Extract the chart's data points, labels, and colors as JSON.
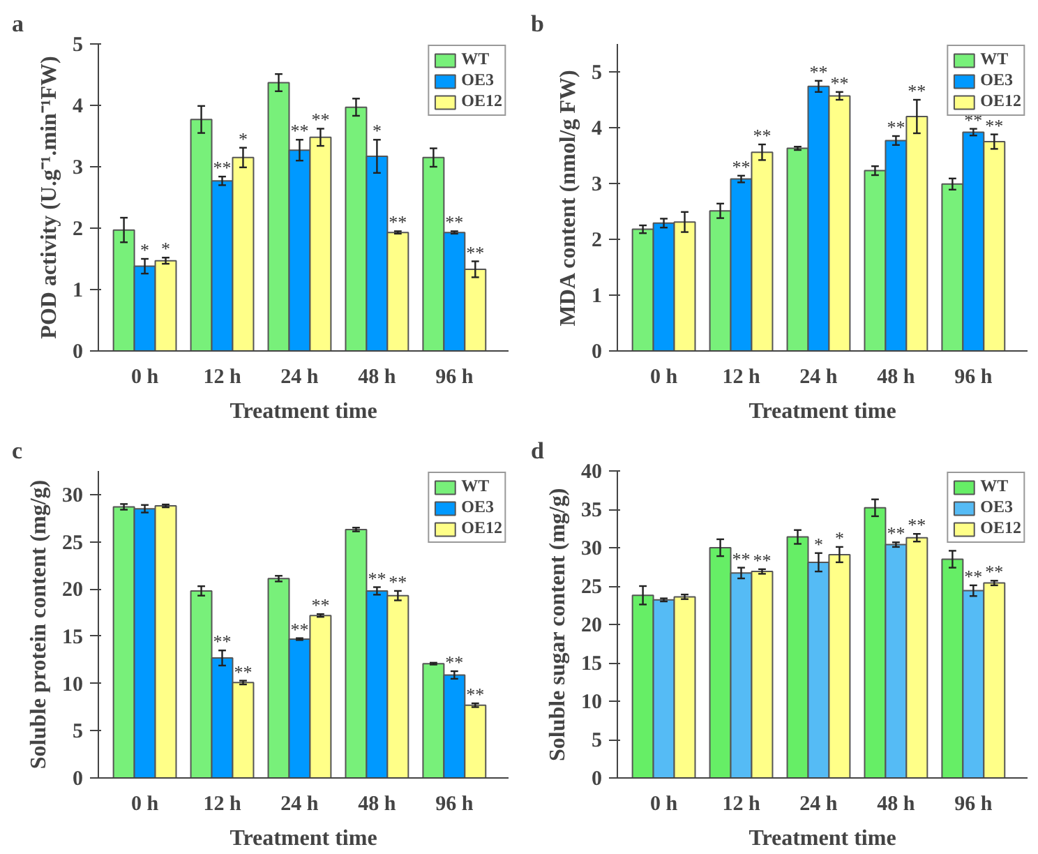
{
  "chart_data": [
    {
      "type": "bar",
      "title": "a",
      "xlabel": "Treatment time",
      "ylabel": "POD activity (U.g⁻¹.min⁻¹FW)",
      "categories": [
        "0 h",
        "12 h",
        "24 h",
        "48 h",
        "96 h"
      ],
      "ylim": [
        0,
        5
      ],
      "yticks": [
        0,
        1,
        2,
        3,
        4,
        5
      ],
      "legend": "top right",
      "grid": false,
      "series": [
        {
          "name": "WT",
          "color": "#78f07a",
          "values": [
            1.97,
            3.77,
            4.37,
            3.97,
            3.15
          ],
          "errors": [
            0.2,
            0.22,
            0.14,
            0.14,
            0.15
          ]
        },
        {
          "name": "OE3",
          "color": "#0099ff",
          "values": [
            1.38,
            2.77,
            3.27,
            3.17,
            1.93
          ],
          "errors": [
            0.12,
            0.07,
            0.17,
            0.27,
            0.02
          ],
          "value_labels": [
            "*",
            "**",
            "**",
            "*",
            "**"
          ]
        },
        {
          "name": "OE12",
          "color": "#ffff88",
          "values": [
            1.47,
            3.15,
            3.48,
            1.93,
            1.33
          ],
          "errors": [
            0.05,
            0.16,
            0.14,
            0.02,
            0.13
          ],
          "value_labels": [
            "*",
            "*",
            "**",
            "**",
            "**"
          ]
        }
      ]
    },
    {
      "type": "bar",
      "title": "b",
      "xlabel": "Treatment time",
      "ylabel": "MDA content (nmol/g FW)",
      "categories": [
        "0 h",
        "12 h",
        "24 h",
        "48 h",
        "96 h"
      ],
      "ylim": [
        0,
        5.5
      ],
      "yticks": [
        0,
        1,
        2,
        3,
        4,
        5
      ],
      "legend": "top right",
      "grid": false,
      "series": [
        {
          "name": "WT",
          "color": "#78f07a",
          "values": [
            2.18,
            2.51,
            3.63,
            3.23,
            2.99
          ],
          "errors": [
            0.07,
            0.13,
            0.03,
            0.08,
            0.1
          ]
        },
        {
          "name": "OE3",
          "color": "#0099ff",
          "values": [
            2.29,
            3.08,
            4.74,
            3.77,
            3.92
          ],
          "errors": [
            0.08,
            0.06,
            0.1,
            0.08,
            0.06
          ],
          "value_labels": [
            null,
            "**",
            "**",
            "**",
            "**"
          ]
        },
        {
          "name": "OE12",
          "color": "#ffff88",
          "values": [
            2.31,
            3.56,
            4.57,
            4.2,
            3.75
          ],
          "errors": [
            0.18,
            0.14,
            0.07,
            0.3,
            0.13
          ],
          "value_labels": [
            null,
            "**",
            "**",
            "**",
            "**"
          ]
        }
      ]
    },
    {
      "type": "bar",
      "title": "c",
      "xlabel": "Treatment time",
      "ylabel": "Soluble protein content (mg/g)",
      "categories": [
        "0 h",
        "12 h",
        "24 h",
        "48 h",
        "96 h"
      ],
      "ylim": [
        0,
        32.5
      ],
      "yticks": [
        0,
        5,
        10,
        15,
        20,
        25,
        30
      ],
      "legend": "top right",
      "grid": false,
      "series": [
        {
          "name": "WT",
          "color": "#78f07a",
          "values": [
            28.7,
            19.8,
            21.1,
            26.3,
            12.1
          ],
          "errors": [
            0.3,
            0.5,
            0.3,
            0.2,
            0.1
          ]
        },
        {
          "name": "OE3",
          "color": "#0099ff",
          "values": [
            28.5,
            12.7,
            14.7,
            19.8,
            10.9
          ],
          "errors": [
            0.4,
            0.8,
            0.1,
            0.4,
            0.4
          ],
          "value_labels": [
            null,
            "**",
            "**",
            "**",
            "**"
          ]
        },
        {
          "name": "OE12",
          "color": "#ffff88",
          "values": [
            28.8,
            10.1,
            17.2,
            19.3,
            7.7
          ],
          "errors": [
            0.15,
            0.2,
            0.15,
            0.5,
            0.2
          ],
          "value_labels": [
            null,
            "**",
            "**",
            "**",
            "**"
          ]
        }
      ]
    },
    {
      "type": "bar",
      "title": "d",
      "xlabel": "Treatment time",
      "ylabel": "Soluble sugar content (mg/g)",
      "categories": [
        "0 h",
        "12 h",
        "24 h",
        "48 h",
        "96 h"
      ],
      "ylim": [
        0,
        40
      ],
      "yticks": [
        0,
        5,
        10,
        15,
        20,
        25,
        30,
        35,
        40
      ],
      "legend": "top right",
      "grid": false,
      "series": [
        {
          "name": "WT",
          "color": "#66ee66",
          "values": [
            23.8,
            30.0,
            31.4,
            35.2,
            28.5
          ],
          "errors": [
            1.2,
            1.1,
            0.9,
            1.1,
            1.1
          ]
        },
        {
          "name": "OE3",
          "color": "#55bbf5",
          "values": [
            23.2,
            26.7,
            28.1,
            30.4,
            24.4
          ],
          "errors": [
            0.2,
            0.7,
            1.2,
            0.3,
            0.7
          ],
          "value_labels": [
            null,
            "**",
            "*",
            "**",
            "**"
          ]
        },
        {
          "name": "OE12",
          "color": "#ffff88",
          "values": [
            23.6,
            26.9,
            29.1,
            31.3,
            25.4
          ],
          "errors": [
            0.3,
            0.3,
            1.0,
            0.5,
            0.3
          ],
          "value_labels": [
            null,
            "**",
            "*",
            "**",
            "**"
          ]
        }
      ]
    }
  ]
}
